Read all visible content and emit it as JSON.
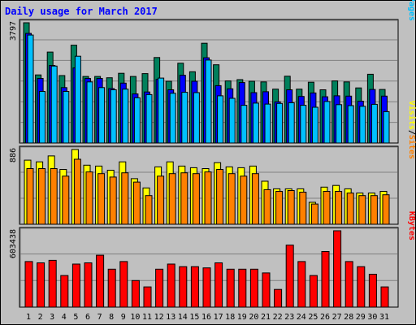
{
  "page": {
    "title": "Daily usage for March 2017"
  },
  "chart_data": {
    "type": "bar",
    "title": "Daily usage for March 2017",
    "categories": [
      "1",
      "2",
      "3",
      "4",
      "5",
      "6",
      "7",
      "8",
      "9",
      "10",
      "11",
      "12",
      "13",
      "14",
      "15",
      "16",
      "17",
      "18",
      "19",
      "20",
      "21",
      "22",
      "23",
      "24",
      "25",
      "26",
      "27",
      "28",
      "29",
      "30",
      "31"
    ],
    "weekend_days": [
      "4",
      "5",
      "11",
      "12",
      "18",
      "19",
      "25",
      "26"
    ],
    "colors": {
      "hits": "#00805c",
      "files": "#0000ff",
      "pages": "#00c0ff",
      "visits": "#ffff00",
      "sites": "#ff8000",
      "kbytes": "#ff0000",
      "weekend_label": "#00805c",
      "weekday_label": "#000000"
    },
    "panels": [
      {
        "id": "hits-files-pages",
        "max_label": "3797",
        "ylim": [
          0,
          3797
        ],
        "legend": [
          {
            "name": "Pages",
            "color": "#00c0ff"
          },
          {
            "sep": "/"
          },
          {
            "name": "Files",
            "color": "#0000ff"
          },
          {
            "sep": "/"
          },
          {
            "name": "Hits",
            "color": "#00805c"
          }
        ],
        "series": [
          {
            "name": "Hits",
            "values": [
              3797,
              2150,
              2870,
              2130,
              3090,
              2100,
              2100,
              2060,
              2200,
              2100,
              2190,
              2700,
              1950,
              2520,
              2250,
              3150,
              2470,
              1960,
              2000,
              1950,
              1930,
              1700,
              2110,
              1700,
              1920,
              1680,
              1960,
              1930,
              1740,
              2170,
              1690
            ]
          },
          {
            "name": "Files",
            "values": [
              3460,
              2040,
              2450,
              1750,
              2370,
              2040,
              2040,
              1720,
              1890,
              1550,
              1610,
              2010,
              1680,
              2140,
              1950,
              2690,
              1810,
              1710,
              1910,
              1590,
              1620,
              1300,
              1680,
              1470,
              1580,
              1460,
              1490,
              1480,
              1320,
              1690,
              1480
            ]
          },
          {
            "name": "Pages",
            "values": [
              3410,
              1630,
              2430,
              1630,
              2740,
              1930,
              1750,
              1680,
              1700,
              1430,
              1530,
              2050,
              1570,
              1600,
              1590,
              2620,
              1490,
              1410,
              1190,
              1260,
              1230,
              1250,
              1270,
              1190,
              1130,
              1310,
              1210,
              1180,
              1160,
              1220,
              990
            ]
          }
        ]
      },
      {
        "id": "visits-sites",
        "max_label": "886",
        "ylim": [
          0,
          886
        ],
        "legend": [
          {
            "name": "Sites",
            "color": "#ff8000"
          },
          {
            "sep": "/"
          },
          {
            "name": "Visits",
            "color": "#ffff00"
          }
        ],
        "series": [
          {
            "name": "Visits",
            "values": [
              760,
              740,
              810,
              650,
              886,
              700,
              690,
              640,
              740,
              540,
              430,
              680,
              740,
              690,
              670,
              660,
              730,
              680,
              670,
              690,
              510,
              420,
              420,
              420,
              260,
              440,
              460,
              420,
              370,
              370,
              390
            ]
          },
          {
            "name": "Sites",
            "values": [
              660,
              660,
              660,
              570,
              770,
              620,
              600,
              560,
              610,
              500,
              340,
              570,
              600,
              610,
              600,
              620,
              650,
              600,
              570,
              600,
              410,
              390,
              400,
              380,
              240,
              390,
              390,
              370,
              340,
              340,
              350
            ]
          }
        ]
      },
      {
        "id": "kbytes",
        "max_label": "603438",
        "ylim": [
          0,
          603438
        ],
        "legend": [
          {
            "name": "KBytes",
            "color": "#ff0000"
          }
        ],
        "series": [
          {
            "name": "KBytes",
            "values": [
              360000,
              350000,
              370000,
              250000,
              340000,
              350000,
              410000,
              300000,
              360000,
              210000,
              160000,
              300000,
              340000,
              320000,
              320000,
              310000,
              350000,
              300000,
              300000,
              300000,
              270000,
              140000,
              490000,
              360000,
              250000,
              440000,
              603438,
              360000,
              320000,
              260000,
              160000
            ]
          }
        ]
      }
    ]
  }
}
